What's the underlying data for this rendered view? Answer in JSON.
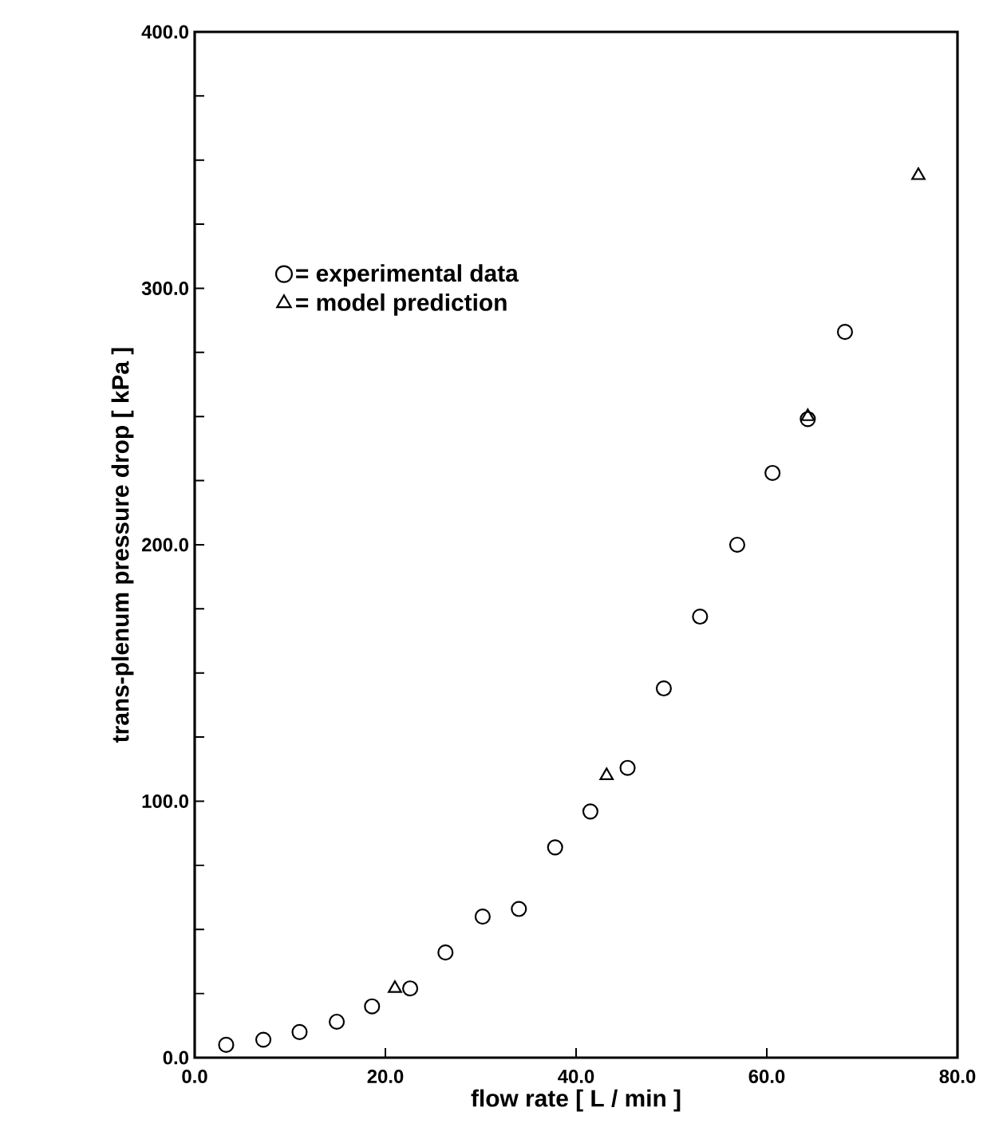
{
  "chart_data": {
    "type": "scatter",
    "xlabel": "flow rate [ L / min ]",
    "ylabel": "trans-plenum pressure drop [ kPa ]",
    "xlim": [
      0,
      80
    ],
    "ylim": [
      0,
      400
    ],
    "xticks": [
      {
        "value": 0,
        "label": "0.0"
      },
      {
        "value": 20,
        "label": "20.0"
      },
      {
        "value": 40,
        "label": "40.0"
      },
      {
        "value": 60,
        "label": "60.0"
      },
      {
        "value": 80,
        "label": "80.0"
      }
    ],
    "yticks": [
      {
        "value": 0,
        "label": "0.0"
      },
      {
        "value": 25,
        "label": null
      },
      {
        "value": 50,
        "label": null
      },
      {
        "value": 75,
        "label": null
      },
      {
        "value": 100,
        "label": "100.0"
      },
      {
        "value": 125,
        "label": null
      },
      {
        "value": 150,
        "label": null
      },
      {
        "value": 175,
        "label": null
      },
      {
        "value": 200,
        "label": "200.0"
      },
      {
        "value": 225,
        "label": null
      },
      {
        "value": 250,
        "label": null
      },
      {
        "value": 275,
        "label": null
      },
      {
        "value": 300,
        "label": "300.0"
      },
      {
        "value": 325,
        "label": null
      },
      {
        "value": 350,
        "label": null
      },
      {
        "value": 375,
        "label": null
      },
      {
        "value": 400,
        "label": "400.0"
      }
    ],
    "legend": "top left",
    "series": [
      {
        "name": "= experimental data",
        "color": "#000000",
        "marker": "circle",
        "x": [
          3.3,
          7.2,
          11.0,
          14.9,
          18.6,
          22.6,
          26.3,
          30.2,
          34.0,
          37.8,
          41.5,
          45.4,
          49.2,
          53.0,
          56.9,
          60.6,
          64.3,
          68.2
        ],
        "values": [
          5,
          7,
          10,
          14,
          20,
          27,
          41,
          55,
          58,
          82,
          96,
          113,
          144,
          172,
          200,
          228,
          249,
          283
        ]
      },
      {
        "name": "= model prediction",
        "color": "#000000",
        "marker": "triangle",
        "x": [
          21.0,
          43.2,
          64.3,
          75.9
        ],
        "values": [
          27,
          110,
          250,
          344
        ]
      }
    ]
  }
}
